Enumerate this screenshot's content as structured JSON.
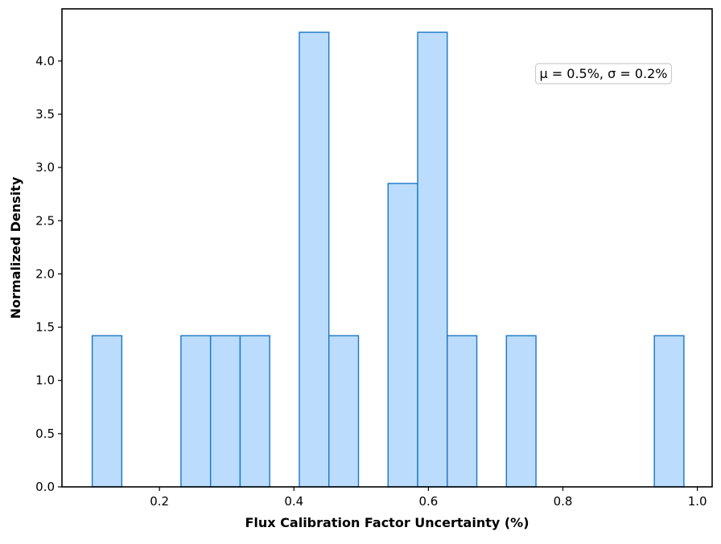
{
  "chart_data": {
    "type": "bar",
    "title": "",
    "xlabel": "Flux Calibration Factor Uncertainty (%)",
    "ylabel": "Normalized Density",
    "xlim": [
      0.055,
      1.022
    ],
    "ylim": [
      0,
      4.49
    ],
    "xticks": [
      0.2,
      0.4,
      0.6,
      0.8,
      1.0
    ],
    "xtick_labels": [
      "0.2",
      "0.4",
      "0.6",
      "0.8",
      "1.0"
    ],
    "yticks": [
      0.0,
      0.5,
      1.0,
      1.5,
      2.0,
      2.5,
      3.0,
      3.5,
      4.0
    ],
    "ytick_labels": [
      "0.0",
      "0.5",
      "1.0",
      "1.5",
      "2.0",
      "2.5",
      "3.0",
      "3.5",
      "4.0"
    ],
    "bins": [
      {
        "x0": 0.1,
        "x1": 0.144,
        "value": 1.42
      },
      {
        "x0": 0.144,
        "x1": 0.188,
        "value": 0.0
      },
      {
        "x0": 0.188,
        "x1": 0.232,
        "value": 0.0
      },
      {
        "x0": 0.232,
        "x1": 0.276,
        "value": 1.42
      },
      {
        "x0": 0.276,
        "x1": 0.32,
        "value": 1.42
      },
      {
        "x0": 0.32,
        "x1": 0.364,
        "value": 1.42
      },
      {
        "x0": 0.364,
        "x1": 0.408,
        "value": 0.0
      },
      {
        "x0": 0.408,
        "x1": 0.452,
        "value": 4.27
      },
      {
        "x0": 0.452,
        "x1": 0.496,
        "value": 1.42
      },
      {
        "x0": 0.496,
        "x1": 0.54,
        "value": 0.0
      },
      {
        "x0": 0.54,
        "x1": 0.584,
        "value": 2.85
      },
      {
        "x0": 0.584,
        "x1": 0.628,
        "value": 4.27
      },
      {
        "x0": 0.628,
        "x1": 0.672,
        "value": 1.42
      },
      {
        "x0": 0.672,
        "x1": 0.716,
        "value": 0.0
      },
      {
        "x0": 0.716,
        "x1": 0.76,
        "value": 1.42
      },
      {
        "x0": 0.76,
        "x1": 0.804,
        "value": 0.0
      },
      {
        "x0": 0.804,
        "x1": 0.848,
        "value": 0.0
      },
      {
        "x0": 0.848,
        "x1": 0.892,
        "value": 0.0
      },
      {
        "x0": 0.892,
        "x1": 0.936,
        "value": 0.0
      },
      {
        "x0": 0.936,
        "x1": 0.98,
        "value": 1.42
      }
    ],
    "annotation": "μ = 0.5%, σ = 0.2%",
    "annotation_position": "top-right",
    "grid": false,
    "colors": {
      "bar_fill": "#bbdcfc",
      "bar_edge": "#1a76c8",
      "axis": "#000000",
      "annotation_border": "#cccccc"
    }
  }
}
